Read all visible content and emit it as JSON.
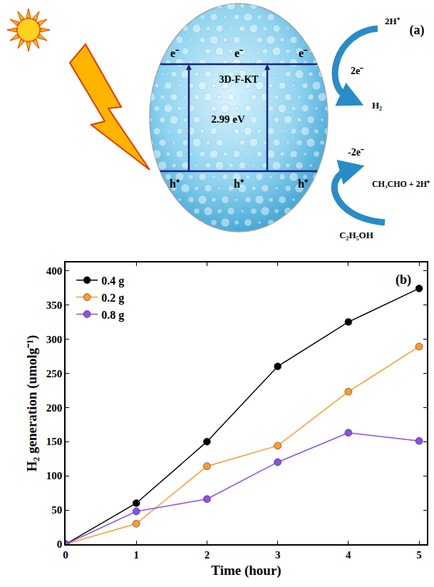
{
  "diagram": {
    "panel_label": "(a)",
    "material": "3D-F-KT",
    "band_gap": "2.99 eV",
    "electrons": [
      "e⁻",
      "e⁻",
      "e⁻"
    ],
    "holes": [
      "h⁺",
      "h⁺",
      "h⁺"
    ],
    "reduction": {
      "reactant": "2H⁺",
      "electrons": "2e⁻",
      "product": "H₂"
    },
    "oxidation": {
      "reactant": "C₂H₅OH",
      "electrons": "-2e⁻",
      "product": "CH₃CHO + 2H⁺"
    }
  },
  "chart_data": {
    "type": "line",
    "annotations": [
      "(b)"
    ],
    "x_label": "Time (hour)",
    "y_label": "H₂ generation (umolg⁻¹)",
    "x": [
      0,
      1,
      2,
      3,
      4,
      5
    ],
    "series": [
      {
        "name": "0.4 g",
        "color": "#000000",
        "values": [
          0,
          60,
          150,
          260,
          325,
          374
        ]
      },
      {
        "name": "0.2 g",
        "color": "#ff9a2e",
        "values": [
          0,
          30,
          114,
          144,
          223,
          289
        ]
      },
      {
        "name": "0.8 g",
        "color": "#8b4fe6",
        "values": [
          0,
          48,
          66,
          120,
          163,
          151
        ]
      }
    ],
    "xlim": [
      0,
      5.11
    ],
    "xticks": [
      0,
      1,
      2,
      3,
      4,
      5
    ],
    "ylim": [
      0,
      412
    ],
    "yticks": [
      0,
      50,
      100,
      150,
      200,
      250,
      300,
      350,
      400
    ],
    "grid": false,
    "legend": "upper left",
    "marker": "circle",
    "line_style": "solid"
  }
}
